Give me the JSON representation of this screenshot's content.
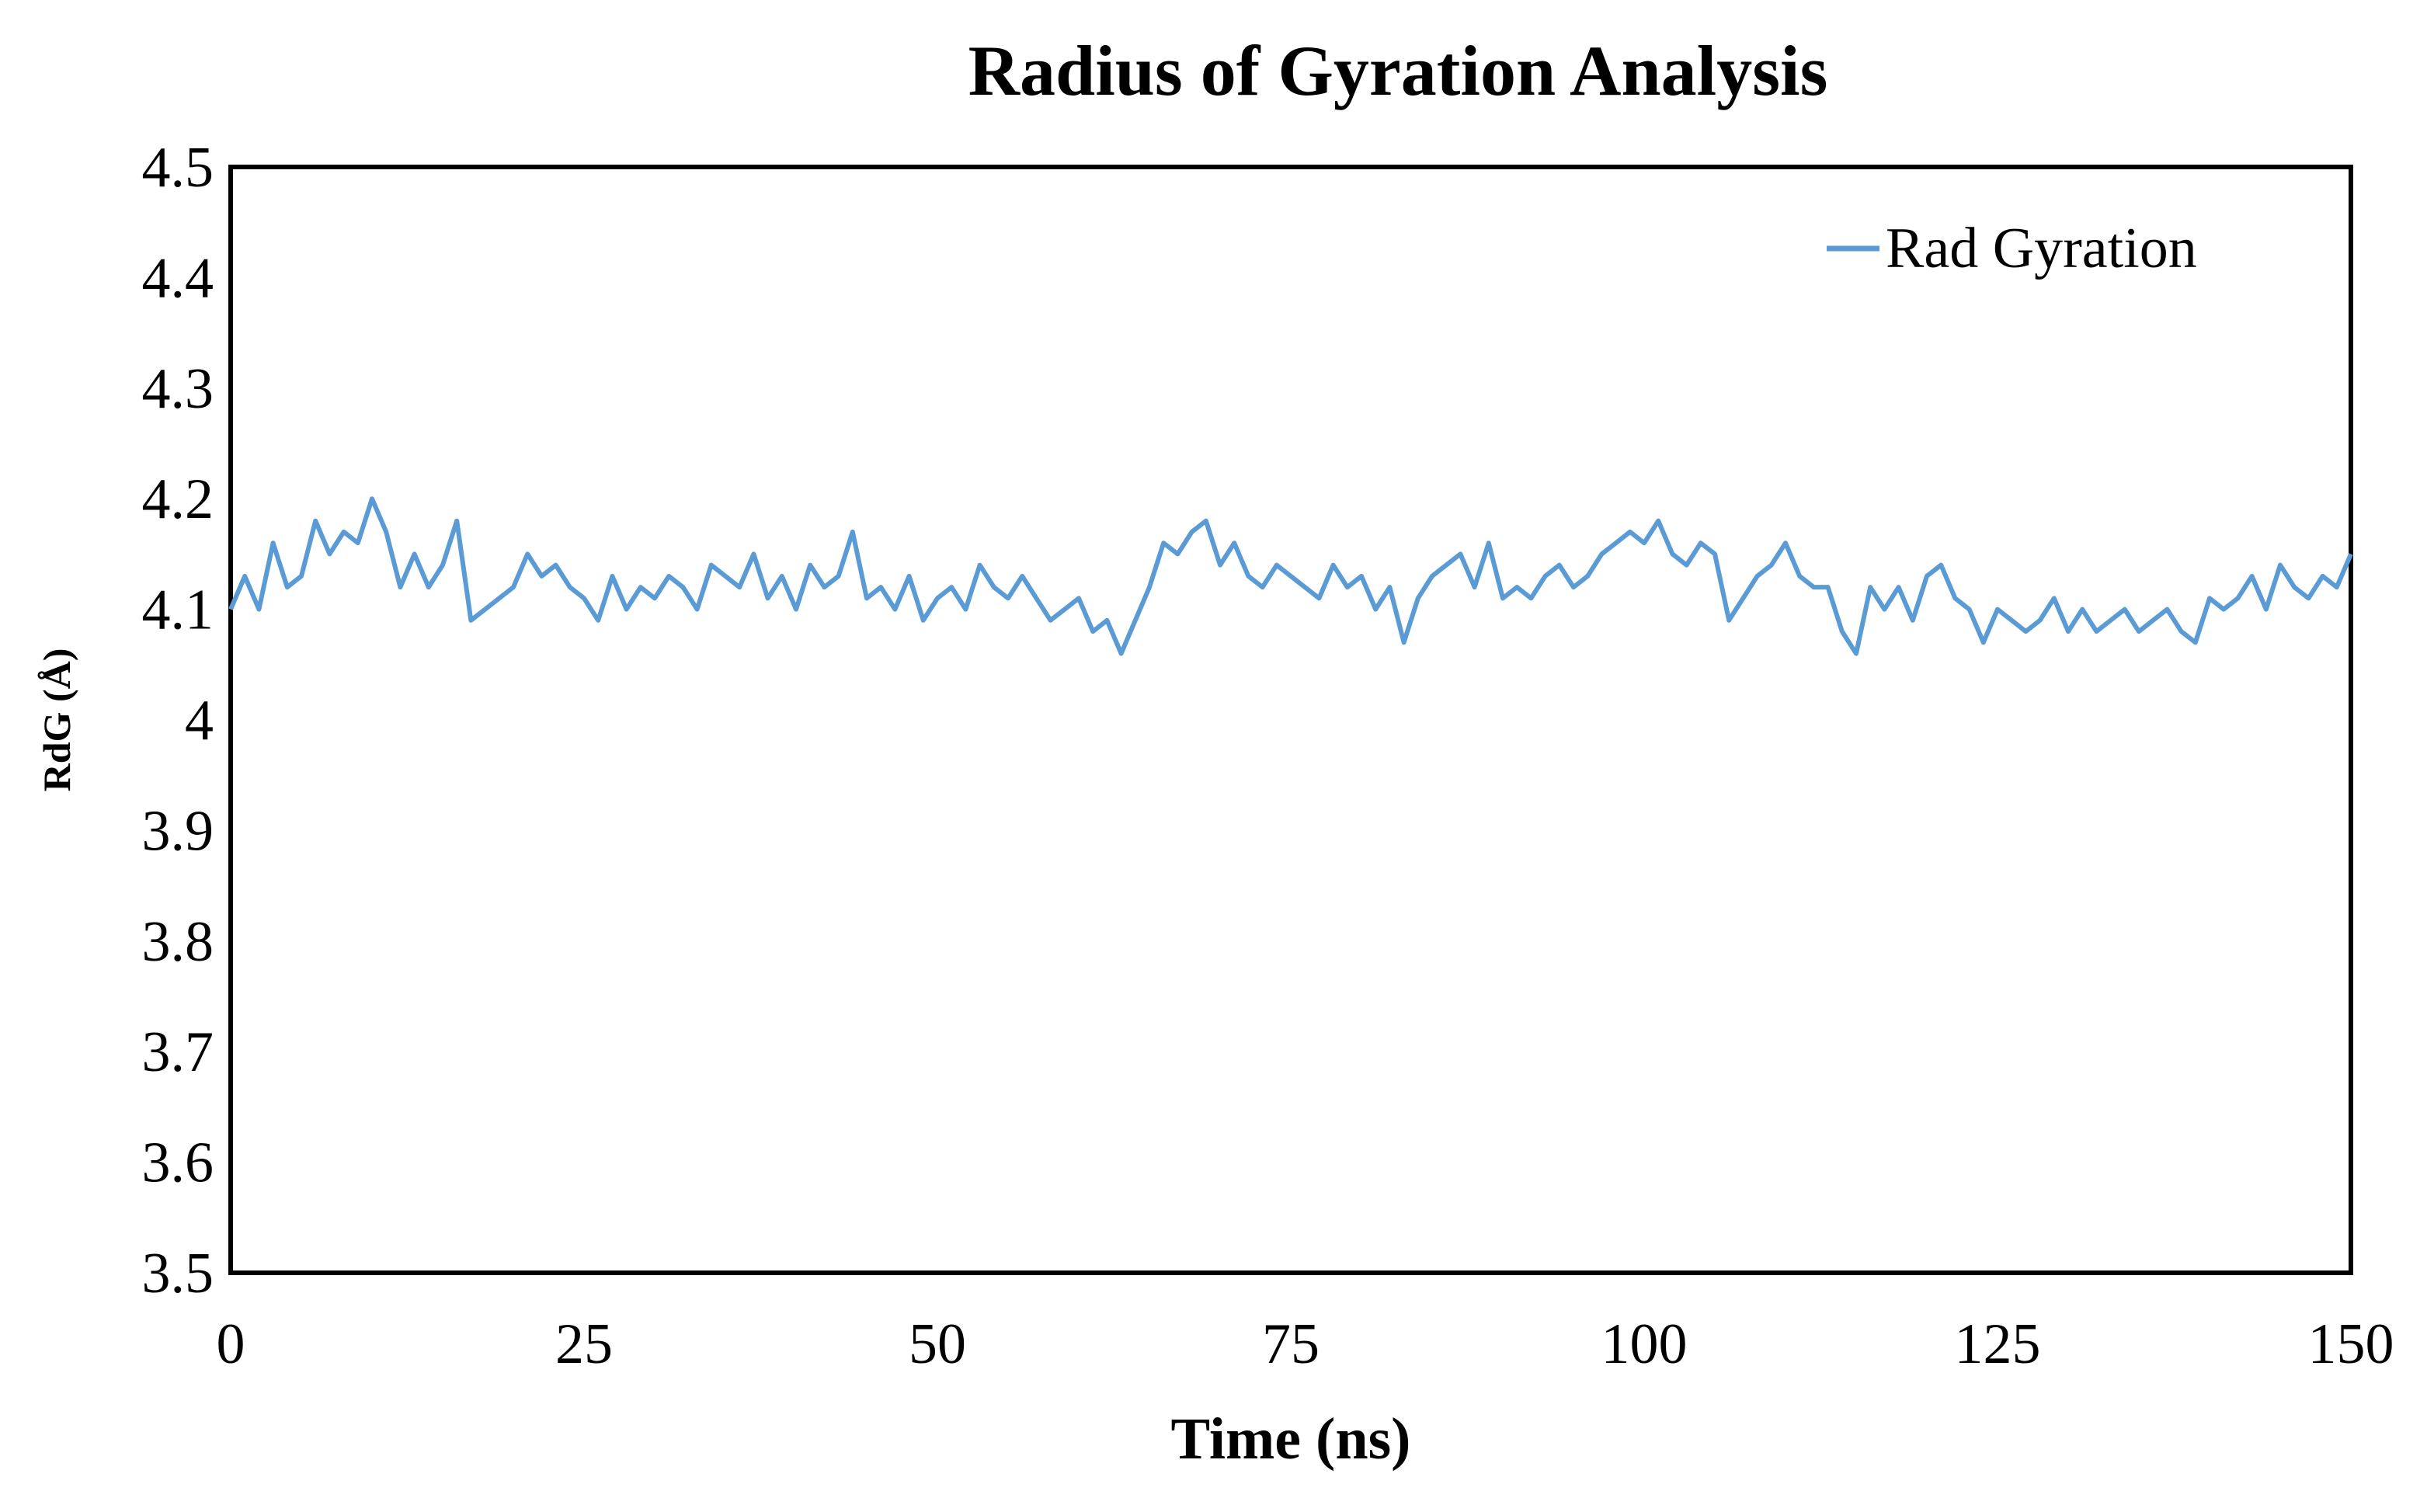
{
  "chart_data": {
    "type": "line",
    "title": "Radius of Gyration Analysis",
    "xlabel": "Time (ns)",
    "ylabel": "RdG (Å)",
    "xlim": [
      0,
      150
    ],
    "ylim": [
      3.5,
      4.5
    ],
    "xticks": [
      "0",
      "25",
      "50",
      "75",
      "100",
      "125",
      "150"
    ],
    "yticks": [
      "4.5",
      "4.4",
      "4.3",
      "4.2",
      "4.1",
      "4",
      "3.9",
      "3.8",
      "3.7",
      "3.6",
      "3.5"
    ],
    "xtick_values": [
      0,
      25,
      50,
      75,
      100,
      125,
      150
    ],
    "ytick_values": [
      4.5,
      4.4,
      4.3,
      4.2,
      4.1,
      4.0,
      3.9,
      3.8,
      3.7,
      3.6,
      3.5
    ],
    "legend_position": "top-right",
    "grid": false,
    "series": [
      {
        "name": "Rad Gyration",
        "color": "#5B9BD5",
        "x": [
          0,
          1,
          2,
          3,
          4,
          5,
          6,
          7,
          8,
          9,
          10,
          11,
          12,
          13,
          14,
          15,
          16,
          17,
          18,
          19,
          20,
          21,
          22,
          23,
          24,
          25,
          26,
          27,
          28,
          29,
          30,
          31,
          32,
          33,
          34,
          35,
          36,
          37,
          38,
          39,
          40,
          41,
          42,
          43,
          44,
          45,
          46,
          47,
          48,
          49,
          50,
          51,
          52,
          53,
          54,
          55,
          56,
          57,
          58,
          59,
          60,
          61,
          62,
          63,
          64,
          65,
          66,
          67,
          68,
          69,
          70,
          71,
          72,
          73,
          74,
          75,
          76,
          77,
          78,
          79,
          80,
          81,
          82,
          83,
          84,
          85,
          86,
          87,
          88,
          89,
          90,
          91,
          92,
          93,
          94,
          95,
          96,
          97,
          98,
          99,
          100,
          101,
          102,
          103,
          104,
          105,
          106,
          107,
          108,
          109,
          110,
          111,
          112,
          113,
          114,
          115,
          116,
          117,
          118,
          119,
          120,
          121,
          122,
          123,
          124,
          125,
          126,
          127,
          128,
          129,
          130,
          131,
          132,
          133,
          134,
          135,
          136,
          137,
          138,
          139,
          140,
          141,
          142,
          143,
          144,
          145,
          146,
          147,
          148,
          149,
          150
        ],
        "values": [
          4.1,
          4.13,
          4.1,
          4.16,
          4.12,
          4.13,
          4.18,
          4.15,
          4.17,
          4.16,
          4.2,
          4.17,
          4.12,
          4.15,
          4.12,
          4.14,
          4.18,
          4.09,
          4.1,
          4.11,
          4.12,
          4.15,
          4.13,
          4.14,
          4.12,
          4.11,
          4.09,
          4.13,
          4.1,
          4.12,
          4.11,
          4.13,
          4.12,
          4.1,
          4.14,
          4.13,
          4.12,
          4.15,
          4.11,
          4.13,
          4.1,
          4.14,
          4.12,
          4.13,
          4.17,
          4.11,
          4.12,
          4.1,
          4.13,
          4.09,
          4.11,
          4.12,
          4.1,
          4.14,
          4.12,
          4.11,
          4.13,
          4.11,
          4.09,
          4.1,
          4.11,
          4.08,
          4.09,
          4.06,
          4.09,
          4.12,
          4.16,
          4.15,
          4.17,
          4.18,
          4.14,
          4.16,
          4.13,
          4.12,
          4.14,
          4.13,
          4.12,
          4.11,
          4.14,
          4.12,
          4.13,
          4.1,
          4.12,
          4.07,
          4.11,
          4.13,
          4.14,
          4.15,
          4.12,
          4.16,
          4.11,
          4.12,
          4.11,
          4.13,
          4.14,
          4.12,
          4.13,
          4.15,
          4.16,
          4.17,
          4.16,
          4.18,
          4.15,
          4.14,
          4.16,
          4.15,
          4.09,
          4.11,
          4.13,
          4.14,
          4.16,
          4.13,
          4.12,
          4.12,
          4.08,
          4.06,
          4.12,
          4.1,
          4.12,
          4.09,
          4.13,
          4.14,
          4.11,
          4.1,
          4.07,
          4.1,
          4.09,
          4.08,
          4.09,
          4.11,
          4.08,
          4.1,
          4.08,
          4.09,
          4.1,
          4.08,
          4.09,
          4.1,
          4.08,
          4.07,
          4.11,
          4.1,
          4.11,
          4.13,
          4.1,
          4.14,
          4.12,
          4.11,
          4.13,
          4.12,
          4.15
        ]
      }
    ]
  }
}
